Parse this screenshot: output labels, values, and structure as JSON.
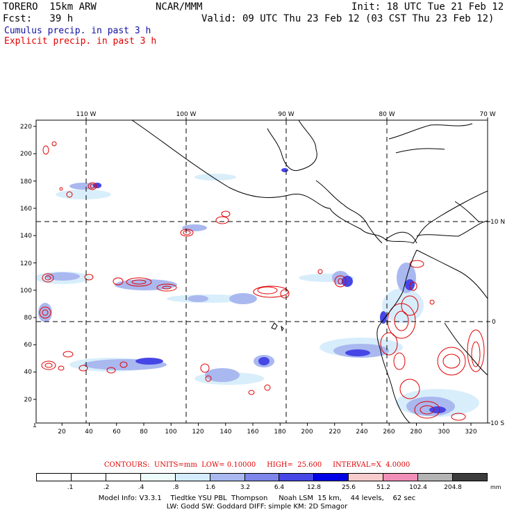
{
  "header": {
    "model": "TORERO  15km ARW",
    "org": "NCAR/MMM",
    "init": "Init: 18 UTC Tue 21 Feb 12",
    "fcst": "Fcst:   39 h",
    "valid": "Valid: 09 UTC Thu 23 Feb 12 (03 CST Thu 23 Feb 12)",
    "cumulus": "Cumulus precip. in past 3 h",
    "explicit": "Explicit precip. in past 3 h"
  },
  "colors": {
    "cumulus_text": "#1010a0",
    "explicit_text": "#e00000",
    "contour": "#e00000",
    "grid": "#000000"
  },
  "map": {
    "lon_labels": [
      "110 W",
      "100 W",
      "90 W",
      "80 W",
      "70 W"
    ],
    "lat_labels": [
      "10 N",
      "0",
      "10 S"
    ],
    "y_ticks": [
      "220",
      "200",
      "180",
      "160",
      "140",
      "120",
      "100",
      "80",
      "60",
      "40",
      "20"
    ],
    "x_ticks": [
      "20",
      "40",
      "60",
      "80",
      "100",
      "120",
      "140",
      "160",
      "180",
      "200",
      "220",
      "240",
      "260",
      "280",
      "300",
      "320"
    ]
  },
  "contour_info": "CONTOURS:  UNITS=mm  LOW= 0.10000     HIGH=  25.600     INTERVAL=X  4.0000",
  "colorbar": {
    "labels": [
      ".1",
      ".2",
      ".4",
      ".8",
      "1.6",
      "3.2",
      "6.4",
      "12.8",
      "25.6",
      "51.2",
      "102.4",
      "204.8"
    ],
    "unit": "mm",
    "colors": [
      "#ffffff",
      "#ffffff",
      "#ffffff",
      "#eefbfb",
      "#d4ecfb",
      "#aab8f0",
      "#7f86ea",
      "#4646e6",
      "#0000e6",
      "#f8cccc",
      "#f090b8",
      "#b4b4b4",
      "#3c3c3c",
      "#d8a8f0"
    ]
  },
  "footer": {
    "line1": "Model Info: V3.3.1    Tiedtke YSU PBL  Thompson     Noah LSM  15 km,    44 levels,    62 sec",
    "line2": "LW: Godd SW: Goddard DIFF: simple KM: 2D Smagor"
  }
}
